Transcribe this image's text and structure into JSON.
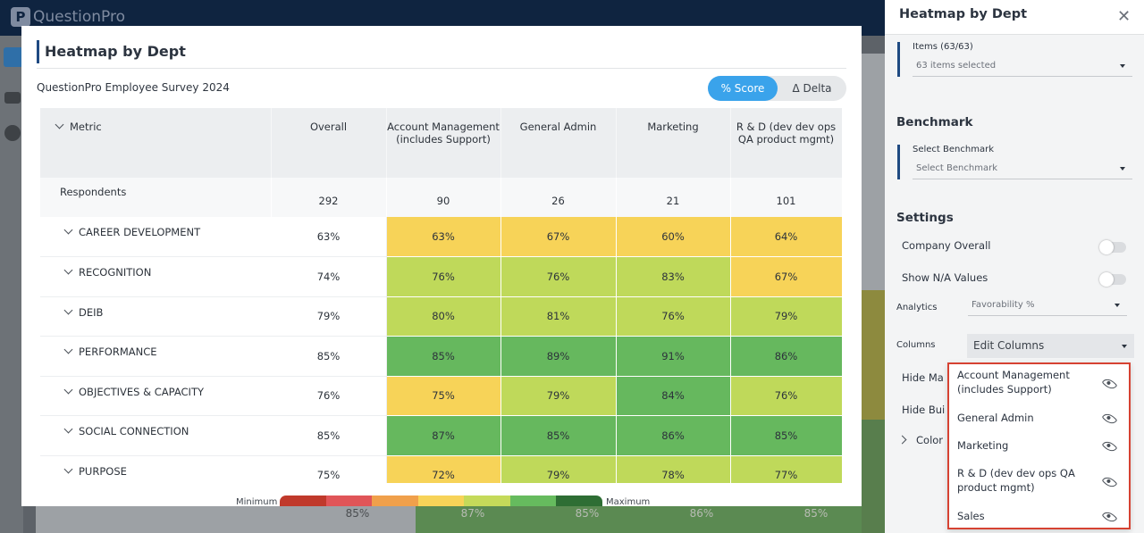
{
  "app": {
    "brand": "QuestionPro",
    "brand_mark": "P"
  },
  "background": {
    "bottom_row": [
      "85%",
      "87%",
      "85%",
      "86%",
      "85%"
    ]
  },
  "modal": {
    "title": "Heatmap by Dept",
    "survey": "QuestionPro Employee Survey 2024",
    "toggle": {
      "score": "% Score",
      "delta": "Δ Delta"
    },
    "columns": [
      "Overall",
      "Account Management (includes Support)",
      "General Admin",
      "Marketing",
      "R & D (dev dev ops QA product mgmt)"
    ],
    "metric_header": "Metric",
    "respondents": {
      "label": "Respondents",
      "values": [
        "292",
        "90",
        "26",
        "21",
        "101"
      ]
    },
    "rows": [
      {
        "label": "CAREER DEVELOPMENT",
        "values": [
          "63%",
          "63%",
          "67%",
          "60%",
          "64%"
        ]
      },
      {
        "label": "RECOGNITION",
        "values": [
          "74%",
          "76%",
          "76%",
          "83%",
          "67%"
        ]
      },
      {
        "label": "DEIB",
        "values": [
          "79%",
          "80%",
          "81%",
          "76%",
          "79%"
        ]
      },
      {
        "label": "PERFORMANCE",
        "values": [
          "85%",
          "85%",
          "89%",
          "91%",
          "86%"
        ]
      },
      {
        "label": "OBJECTIVES & CAPACITY",
        "values": [
          "76%",
          "75%",
          "79%",
          "84%",
          "76%"
        ]
      },
      {
        "label": "SOCIAL CONNECTION",
        "values": [
          "85%",
          "87%",
          "85%",
          "86%",
          "85%"
        ]
      },
      {
        "label": "PURPOSE",
        "values": [
          "75%",
          "72%",
          "79%",
          "78%",
          "77%"
        ]
      }
    ],
    "legend": {
      "min": "Minimum",
      "max": "Maximum",
      "colors": [
        "#c0392b",
        "#e05558",
        "#f0a04b",
        "#f7d358",
        "#c5da5a",
        "#66bb5e",
        "#2e6e34"
      ]
    }
  },
  "colors": {
    "yellow": "#f7d358",
    "lime": "#bfd95a",
    "green": "#66b85e",
    "accent": "#3aa3eb",
    "highlight": "#d64232"
  },
  "panel": {
    "title": "Heatmap by Dept",
    "items": {
      "label": "Items (63/63)",
      "value": "63 items selected"
    },
    "benchmark": {
      "heading": "Benchmark",
      "label": "Select Benchmark",
      "placeholder": "Select Benchmark"
    },
    "settings": {
      "heading": "Settings",
      "company_overall": "Company Overall",
      "show_na": "Show N/A Values",
      "analytics_label": "Analytics",
      "analytics_value": "Favorability %",
      "columns_label": "Columns",
      "columns_value": "Edit Columns",
      "hide_1": "Hide Ma",
      "hide_2": "Hide Bui",
      "color": "Color"
    },
    "column_menu": [
      "Account Management (includes Support)",
      "General Admin",
      "Marketing",
      "R & D (dev dev ops QA product mgmt)",
      "Sales"
    ]
  }
}
